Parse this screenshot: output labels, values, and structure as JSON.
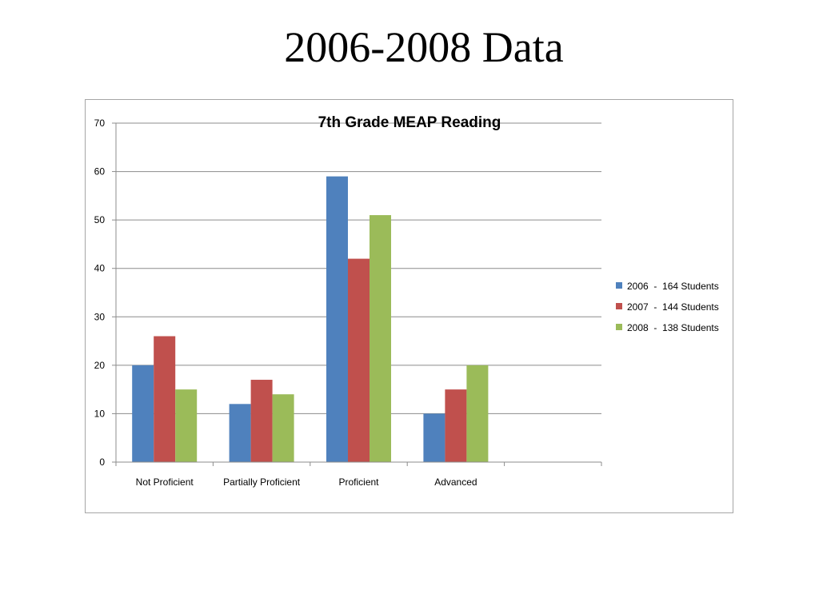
{
  "slide": {
    "title": "2006-2008 Data"
  },
  "chart_data": {
    "type": "bar",
    "title": "7th Grade MEAP Reading",
    "categories": [
      "Not Proficient",
      "Partially Proficient",
      "Proficient",
      "Advanced"
    ],
    "series": [
      {
        "name": "2006  -  164 Students",
        "color": "#4f81bd",
        "values": [
          20,
          12,
          59,
          10
        ]
      },
      {
        "name": "2007  -  144 Students",
        "color": "#c0504d",
        "values": [
          26,
          17,
          42,
          15
        ]
      },
      {
        "name": "2008  -  138 Students",
        "color": "#9bbb59",
        "values": [
          15,
          14,
          51,
          20
        ]
      }
    ],
    "xlabel": "",
    "ylabel": "",
    "ylim": [
      0,
      70
    ],
    "yticks": [
      0,
      10,
      20,
      30,
      40,
      50,
      60,
      70
    ],
    "grid": true,
    "legend_position": "right"
  }
}
